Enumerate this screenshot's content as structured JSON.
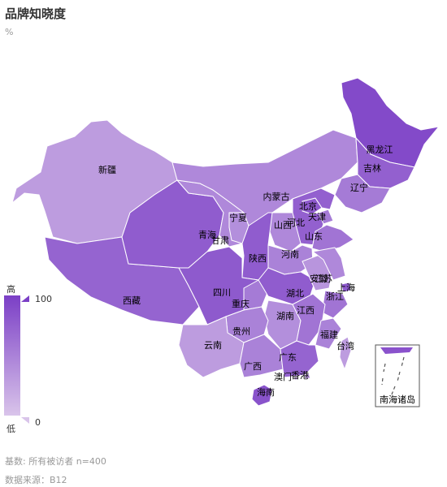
{
  "title": "品牌知晓度",
  "unit": "%",
  "footer": {
    "base": "基数: 所有被访者 n=400",
    "source": "数据来源：B12"
  },
  "legend": {
    "high_label": "高",
    "low_label": "低",
    "max_value": "100",
    "min_value": "0",
    "color_high": "#7b3fc6",
    "color_low": "#d9c4ea"
  },
  "inset_label": "南海诸岛",
  "provinces": [
    {
      "name": "新疆",
      "level": 0.3
    },
    {
      "name": "西藏",
      "level": 0.72
    },
    {
      "name": "青海",
      "level": 0.78
    },
    {
      "name": "甘肃",
      "level": 0.45
    },
    {
      "name": "宁夏",
      "level": 0.4
    },
    {
      "name": "内蒙古",
      "level": 0.45
    },
    {
      "name": "黑龙江",
      "level": 0.92
    },
    {
      "name": "吉林",
      "level": 0.75
    },
    {
      "name": "辽宁",
      "level": 0.55
    },
    {
      "name": "北京",
      "level": 0.8
    },
    {
      "name": "天津",
      "level": 0.55
    },
    {
      "name": "河北",
      "level": 0.75
    },
    {
      "name": "山西",
      "level": 0.45
    },
    {
      "name": "山东",
      "level": 0.6
    },
    {
      "name": "河南",
      "level": 0.5
    },
    {
      "name": "陕西",
      "level": 0.78
    },
    {
      "name": "四川",
      "level": 0.8
    },
    {
      "name": "重庆",
      "level": 0.55
    },
    {
      "name": "湖北",
      "level": 0.78
    },
    {
      "name": "安徽",
      "level": 0.35
    },
    {
      "name": "江苏",
      "level": 0.45
    },
    {
      "name": "上海",
      "level": 0.8
    },
    {
      "name": "浙江",
      "level": 0.6
    },
    {
      "name": "湖南",
      "level": 0.4
    },
    {
      "name": "江西",
      "level": 0.6
    },
    {
      "name": "福建",
      "level": 0.5
    },
    {
      "name": "台湾",
      "level": 0.3
    },
    {
      "name": "贵州",
      "level": 0.5
    },
    {
      "name": "云南",
      "level": 0.3
    },
    {
      "name": "广西",
      "level": 0.5
    },
    {
      "name": "广东",
      "level": 0.72
    },
    {
      "name": "香港",
      "level": 0.35
    },
    {
      "name": "澳门",
      "level": 0.35
    },
    {
      "name": "海南",
      "level": 0.85
    }
  ]
}
